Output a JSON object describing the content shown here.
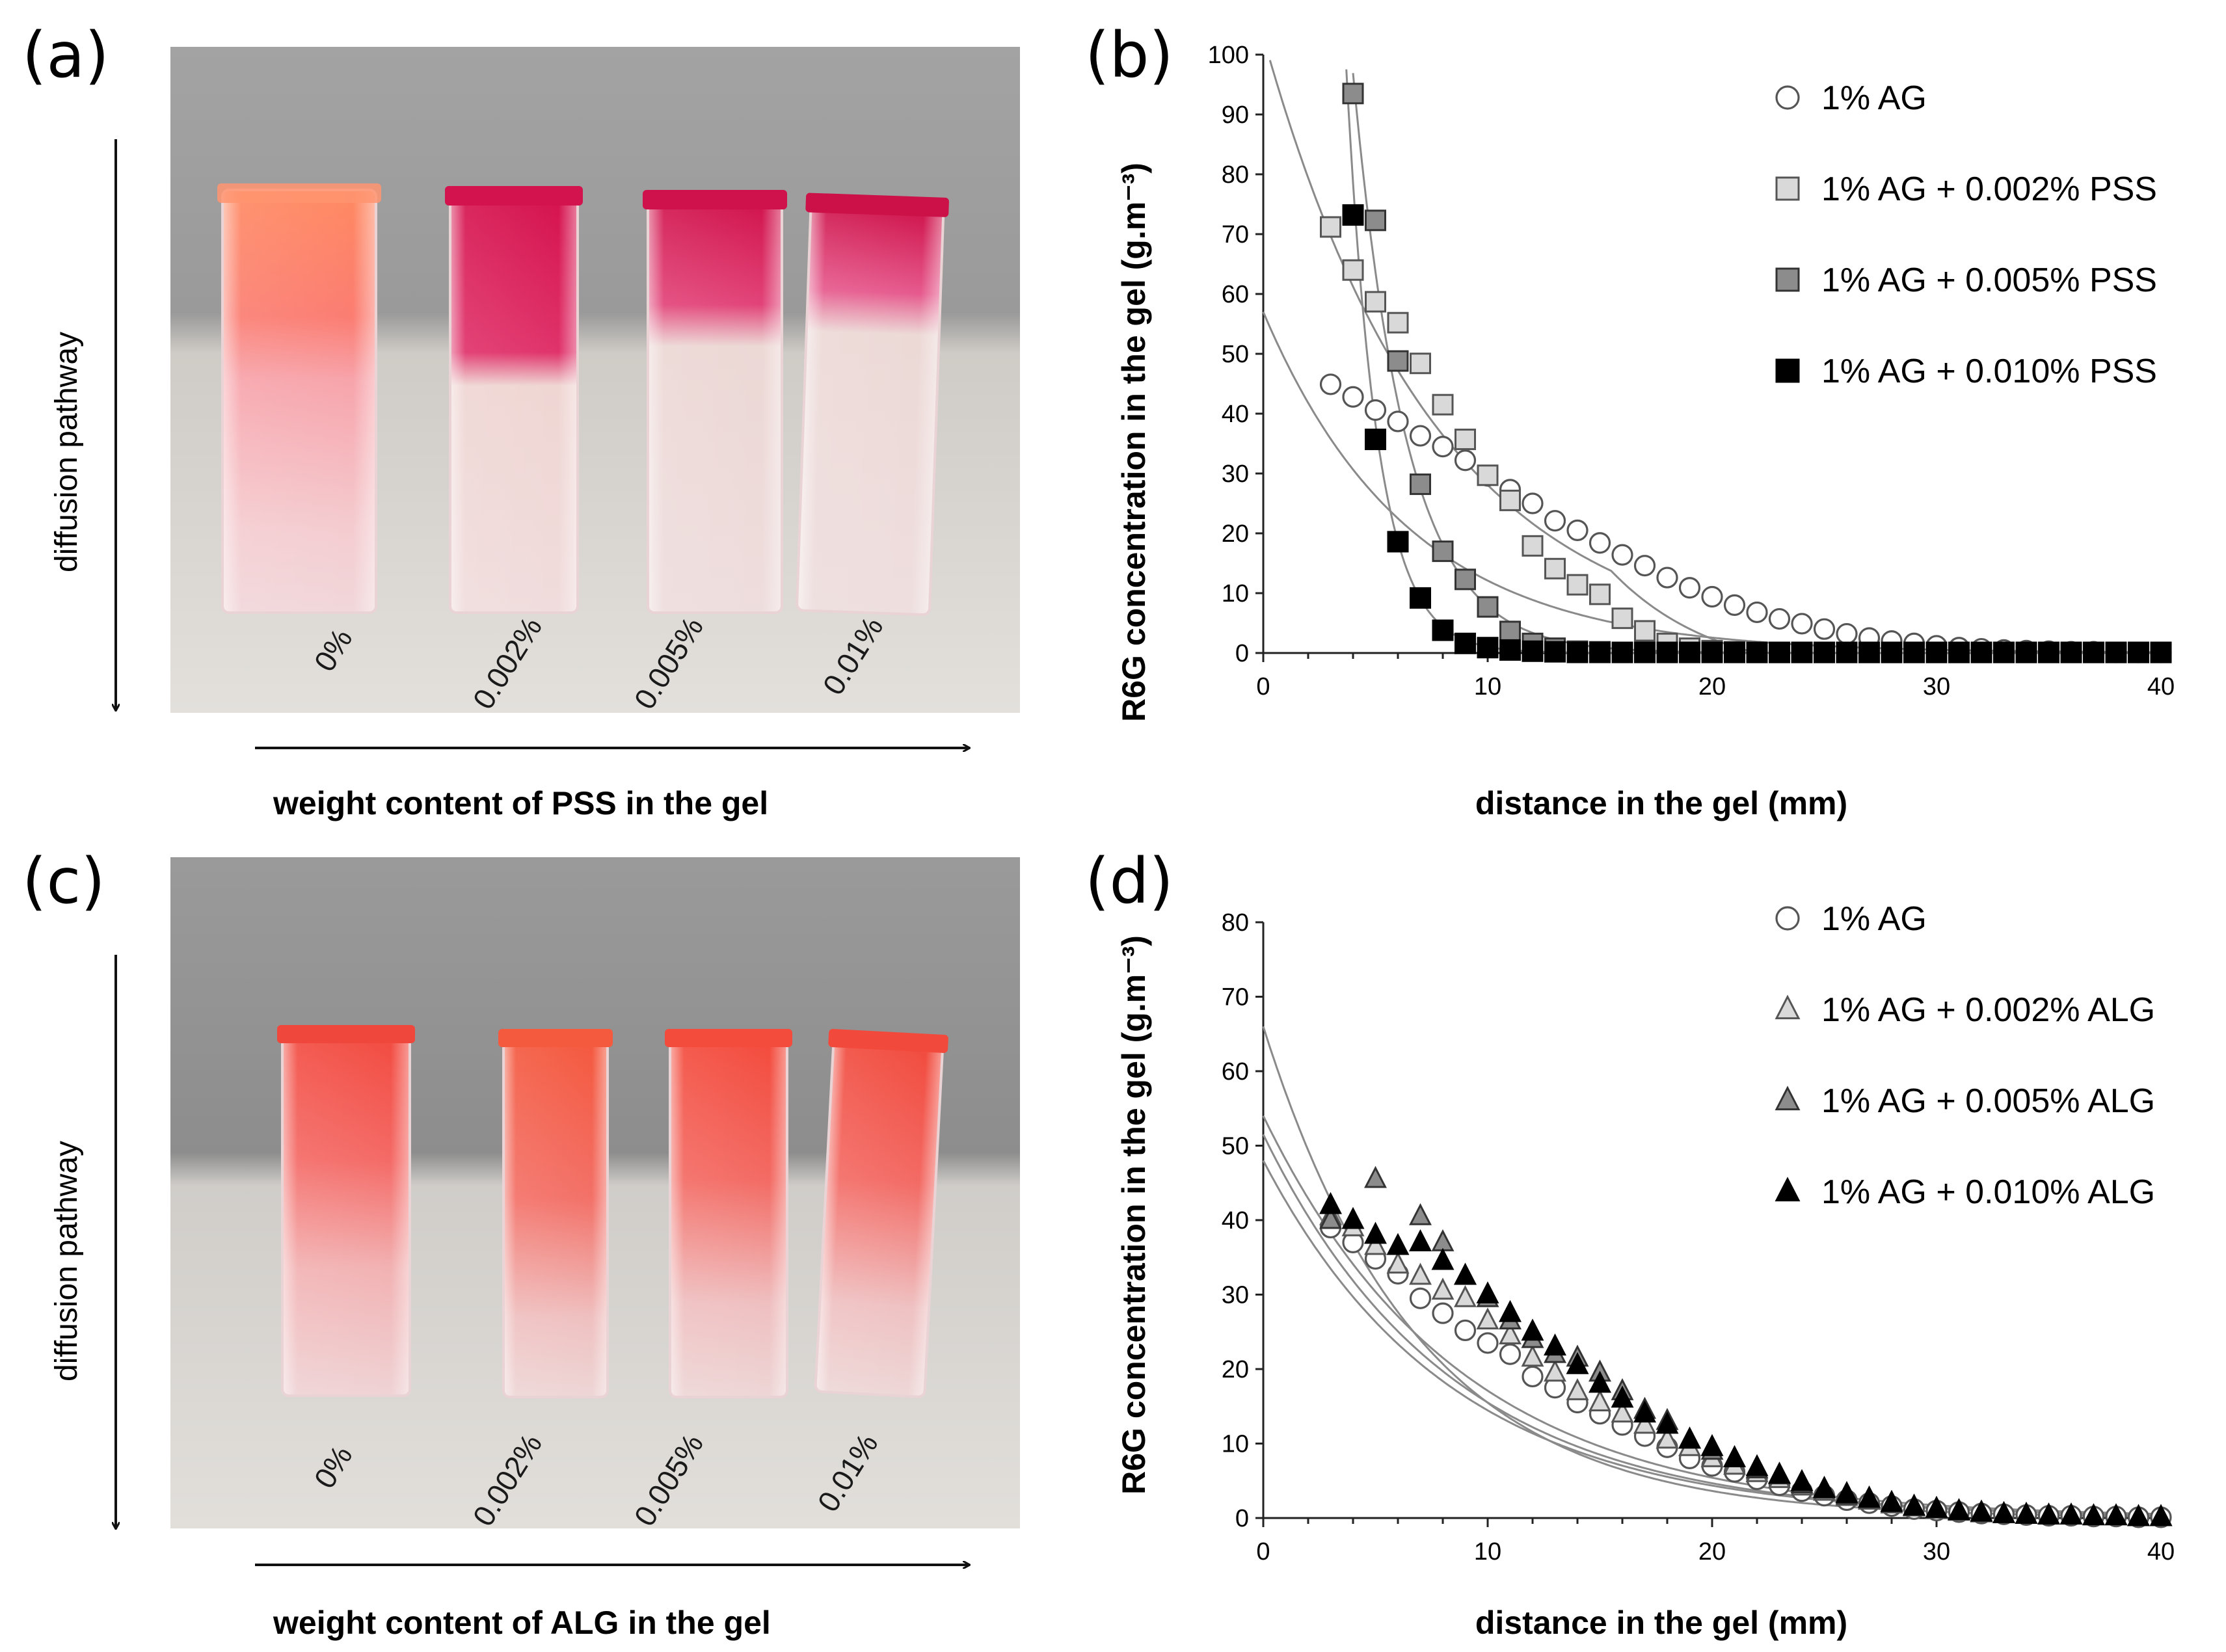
{
  "photo_a": {
    "letter": "(a)",
    "vertical_label": "diffusion pathway",
    "horizontal_label": "weight content of PSS in the gel",
    "cuvette_labels": [
      "0%",
      "0.002%",
      "0.005%",
      "0.01%"
    ],
    "colors": {
      "wall": "#9c9c9c",
      "table": "#cfcbc6",
      "pink": "#f25d74",
      "magenta": "#d81b55"
    }
  },
  "photo_c": {
    "letter": "(c)",
    "vertical_label": "diffusion pathway",
    "horizontal_label": "weight content of ALG in the gel",
    "cuvette_labels": [
      "0%",
      "0.002%",
      "0.005%",
      "0.01%"
    ],
    "colors": {
      "wall": "#8f8f8f",
      "table": "#d6d3cf",
      "orange_red": "#ee4f46"
    }
  },
  "chart_data": [
    {
      "panel": "(b)",
      "type": "scatter",
      "title": "",
      "xlabel": "distance in the gel (mm)",
      "ylabel": "R6G concentration in the gel (g.m⁻³)",
      "xlim": [
        0,
        40
      ],
      "ylim": [
        0,
        100
      ],
      "xticks": [
        0,
        10,
        20,
        30,
        40
      ],
      "yticks": [
        0,
        10,
        20,
        30,
        40,
        50,
        60,
        70,
        80,
        90,
        100
      ],
      "legend_position": "top-right",
      "series": [
        {
          "name": "1% AG",
          "marker": "circle",
          "fill": "#ffffff",
          "stroke": "#555555",
          "x": [
            3,
            4,
            5,
            6,
            7,
            8,
            9,
            10,
            11,
            12,
            13,
            14,
            15,
            16,
            17,
            18,
            19,
            20,
            21,
            22,
            23,
            24,
            25,
            26,
            27,
            28,
            29,
            30,
            31,
            32,
            33,
            34,
            35,
            36,
            37,
            38,
            39,
            40
          ],
          "y": [
            44.9,
            42.8,
            40.6,
            38.7,
            36.3,
            34.5,
            32.2,
            29.6,
            27.3,
            25.0,
            22.1,
            20.5,
            18.4,
            16.4,
            14.6,
            12.6,
            10.9,
            9.4,
            8.0,
            6.8,
            5.7,
            4.9,
            4.0,
            3.2,
            2.5,
            2.0,
            1.6,
            1.2,
            0.9,
            0.7,
            0.5,
            0.4,
            0.3,
            0.2,
            0.2,
            0.1,
            0.1,
            0.1
          ],
          "fit": {
            "a": 57.0,
            "k": 0.155
          }
        },
        {
          "name": "1% AG + 0.002% PSS",
          "marker": "square",
          "fill": "#d9d9d9",
          "stroke": "#555555",
          "x": [
            3,
            4,
            5,
            6,
            7,
            8,
            9,
            10,
            11,
            12,
            13,
            14,
            15,
            16,
            17,
            18,
            19,
            20,
            21,
            22,
            23,
            24,
            25,
            26,
            27,
            28,
            29,
            30,
            31,
            32,
            33,
            34,
            35,
            36,
            37,
            38,
            39,
            40
          ],
          "y": [
            71.2,
            64.0,
            58.7,
            55.2,
            48.4,
            41.5,
            35.7,
            29.7,
            25.5,
            17.9,
            14.1,
            11.4,
            9.8,
            5.8,
            3.7,
            1.6,
            0.8,
            0.4,
            0.2,
            0.1,
            0.1,
            0.1,
            0.1,
            0.1,
            0.1,
            0.1,
            0.1,
            0.1,
            0.1,
            0.1,
            0.1,
            0.1,
            0.1,
            0.1,
            0.1,
            0.1,
            0.1,
            0.1
          ],
          "fit": {
            "a": 103.0,
            "k": 0.13,
            "x0": 15.5,
            "x1": 22.0
          }
        },
        {
          "name": "1% AG + 0.005% PSS",
          "marker": "square",
          "fill": "#8c8c8c",
          "stroke": "#333333",
          "x": [
            4,
            5,
            6,
            7,
            8,
            9,
            10,
            11,
            12,
            13,
            14,
            15,
            16,
            17,
            18,
            19,
            20,
            21,
            22,
            23,
            24,
            25,
            26,
            27,
            28,
            29,
            30,
            31,
            32,
            33,
            34,
            35,
            36,
            37,
            38,
            39,
            40
          ],
          "y": [
            93.5,
            72.3,
            48.8,
            28.2,
            17.0,
            12.3,
            7.7,
            3.6,
            1.6,
            0.8,
            0.3,
            0.2,
            0.1,
            0.1,
            0.1,
            0.1,
            0.1,
            0.1,
            0.1,
            0.1,
            0.1,
            0.1,
            0.1,
            0.1,
            0.1,
            0.1,
            0.1,
            0.1,
            0.1,
            0.1,
            0.1,
            0.1,
            0.1,
            0.1,
            0.1,
            0.1,
            0.1
          ],
          "fit": {
            "a": 520.0,
            "k": 0.42
          }
        },
        {
          "name": "1% AG + 0.010% PSS",
          "marker": "square",
          "fill": "#000000",
          "stroke": "#000000",
          "x": [
            4,
            5,
            6,
            7,
            8,
            9,
            10,
            11,
            12,
            13,
            14,
            15,
            16,
            17,
            18,
            19,
            20,
            21,
            22,
            23,
            24,
            25,
            26,
            27,
            28,
            29,
            30,
            31,
            32,
            33,
            34,
            35,
            36,
            37,
            38,
            39,
            40
          ],
          "y": [
            73.2,
            35.7,
            18.6,
            9.2,
            3.8,
            1.6,
            0.9,
            0.5,
            0.3,
            0.2,
            0.1,
            0.1,
            0.1,
            0.1,
            0.1,
            0.1,
            0.1,
            0.1,
            0.1,
            0.1,
            0.1,
            0.1,
            0.1,
            0.1,
            0.1,
            0.1,
            0.1,
            0.1,
            0.1,
            0.1,
            0.1,
            0.1,
            0.1,
            0.1,
            0.1,
            0.1,
            0.1
          ],
          "fit": {
            "a": 1400.0,
            "k": 0.72
          }
        }
      ]
    },
    {
      "panel": "(d)",
      "type": "scatter",
      "title": "",
      "xlabel": "distance in the gel (mm)",
      "ylabel": "R6G concentration in the gel (g.m⁻³)",
      "xlim": [
        0,
        40
      ],
      "ylim": [
        0,
        80
      ],
      "xticks": [
        0,
        10,
        20,
        30,
        40
      ],
      "yticks": [
        0,
        10,
        20,
        30,
        40,
        50,
        60,
        70,
        80
      ],
      "legend_position": "top-right",
      "series": [
        {
          "name": "1% AG",
          "marker": "circle",
          "fill": "#ffffff",
          "stroke": "#555555",
          "x": [
            3,
            4,
            5,
            6,
            7,
            8,
            9,
            10,
            11,
            12,
            13,
            14,
            15,
            16,
            17,
            18,
            19,
            20,
            21,
            22,
            23,
            24,
            25,
            26,
            27,
            28,
            29,
            30,
            31,
            32,
            33,
            34,
            35,
            36,
            37,
            38,
            39,
            40
          ],
          "y": [
            39.0,
            37.0,
            34.8,
            32.8,
            29.5,
            27.5,
            25.2,
            23.5,
            22.0,
            19.0,
            17.5,
            15.5,
            14.0,
            12.5,
            11.0,
            9.5,
            8.0,
            7.0,
            6.2,
            5.2,
            4.4,
            3.6,
            3.0,
            2.4,
            2.0,
            1.6,
            1.2,
            1.0,
            0.8,
            0.6,
            0.5,
            0.4,
            0.3,
            0.3,
            0.2,
            0.2,
            0.1,
            0.1
          ],
          "fit": {
            "a": 48.0,
            "k": 0.12
          }
        },
        {
          "name": "1% AG + 0.002% ALG",
          "marker": "triangle",
          "fill": "#d9d9d9",
          "stroke": "#555555",
          "x": [
            3,
            4,
            5,
            6,
            7,
            8,
            9,
            10,
            11,
            12,
            13,
            14,
            15,
            16,
            17,
            18,
            19,
            20,
            21,
            22,
            23,
            24,
            25,
            26,
            27,
            28,
            29,
            30,
            31,
            32,
            33,
            34,
            35,
            36,
            37,
            38,
            39,
            40
          ],
          "y": [
            40.5,
            39.0,
            36.5,
            34.0,
            32.5,
            30.5,
            29.5,
            26.5,
            24.5,
            21.5,
            19.5,
            17.0,
            15.5,
            14.0,
            12.5,
            10.5,
            9.5,
            8.0,
            7.0,
            6.0,
            5.2,
            4.2,
            3.5,
            2.8,
            2.3,
            1.8,
            1.4,
            1.1,
            0.8,
            0.6,
            0.5,
            0.4,
            0.3,
            0.3,
            0.2,
            0.2,
            0.1,
            0.1
          ],
          "fit": {
            "a": 51.5,
            "k": 0.12
          }
        },
        {
          "name": "1% AG + 0.005% ALG",
          "marker": "triangle",
          "fill": "#8c8c8c",
          "stroke": "#333333",
          "x": [
            3,
            5,
            7,
            8,
            9,
            10,
            11,
            12,
            13,
            14,
            15,
            16,
            17,
            18,
            19,
            20,
            21,
            22,
            23,
            24,
            25,
            26,
            27,
            28,
            29,
            30,
            31,
            32,
            33,
            34,
            35,
            36,
            37,
            38,
            39,
            40
          ],
          "y": [
            40.0,
            45.5,
            40.5,
            37.0,
            32.5,
            29.5,
            26.5,
            24.0,
            22.0,
            21.5,
            19.5,
            17.0,
            14.5,
            13.0,
            10.5,
            9.0,
            8.0,
            6.5,
            5.7,
            4.5,
            3.8,
            3.0,
            2.5,
            2.0,
            1.5,
            1.2,
            0.9,
            0.7,
            0.5,
            0.4,
            0.3,
            0.3,
            0.2,
            0.2,
            0.1,
            0.1
          ],
          "fit": {
            "a": 66.0,
            "k": 0.145
          }
        },
        {
          "name": "1% AG + 0.010% ALG",
          "marker": "triangle",
          "fill": "#000000",
          "stroke": "#000000",
          "x": [
            3,
            4,
            5,
            6,
            7,
            8,
            9,
            10,
            11,
            12,
            13,
            14,
            15,
            16,
            17,
            18,
            19,
            20,
            21,
            22,
            23,
            24,
            25,
            26,
            27,
            28,
            29,
            30,
            31,
            32,
            33,
            34,
            35,
            36,
            37,
            38,
            39,
            40
          ],
          "y": [
            42.0,
            40.0,
            38.0,
            36.5,
            37.0,
            34.5,
            32.5,
            30.0,
            27.5,
            25.0,
            23.0,
            20.5,
            18.0,
            16.0,
            14.0,
            12.5,
            10.5,
            9.5,
            8.0,
            6.8,
            5.8,
            4.8,
            3.9,
            3.2,
            2.6,
            2.0,
            1.5,
            1.2,
            0.9,
            0.7,
            0.5,
            0.4,
            0.3,
            0.3,
            0.2,
            0.2,
            0.1,
            0.1
          ],
          "fit": {
            "a": 54.0,
            "k": 0.115
          }
        }
      ]
    }
  ]
}
